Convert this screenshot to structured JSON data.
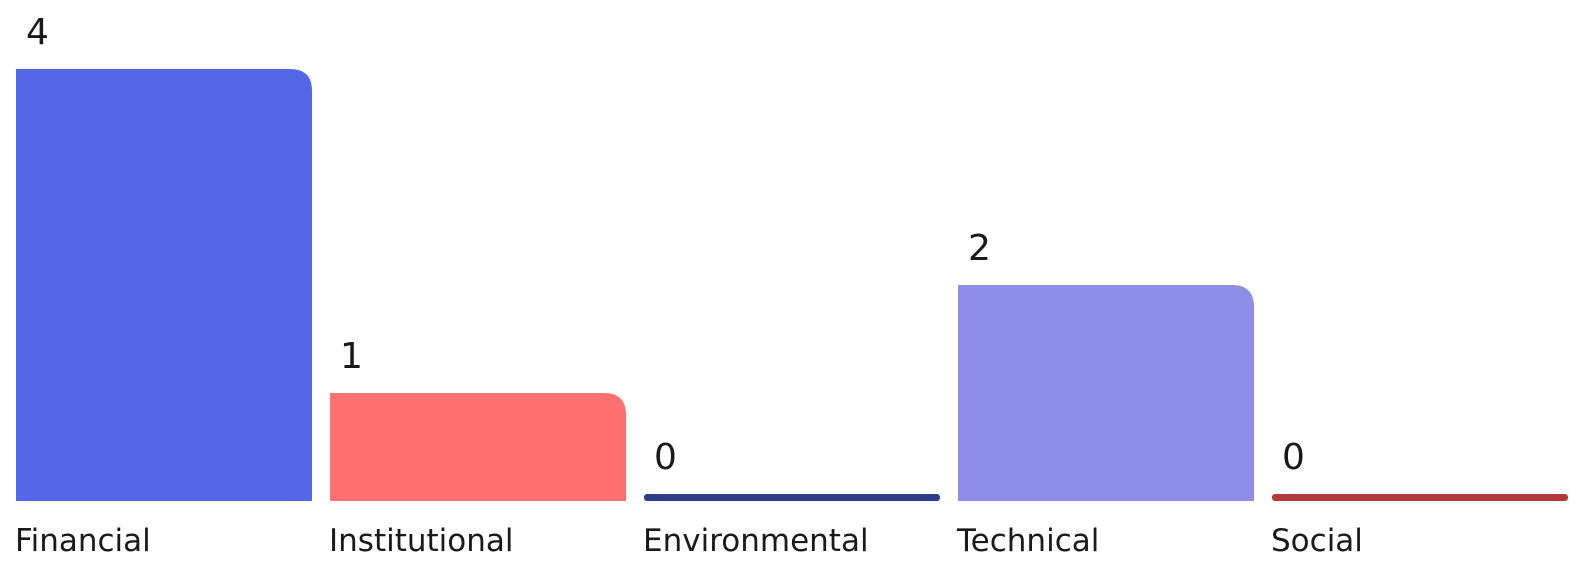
{
  "chart_data": {
    "type": "bar",
    "categories": [
      "Financial",
      "Institutional",
      "Environmental",
      "Technical",
      "Social"
    ],
    "values": [
      4,
      1,
      0,
      2,
      0
    ],
    "colors": [
      "#5468e7",
      "#ff7070",
      "#2f3c8c",
      "#8e8de8",
      "#b33a3a"
    ],
    "title": "",
    "xlabel": "",
    "ylabel": "",
    "ylim": [
      0,
      4
    ],
    "grid": false,
    "legend": "none"
  }
}
